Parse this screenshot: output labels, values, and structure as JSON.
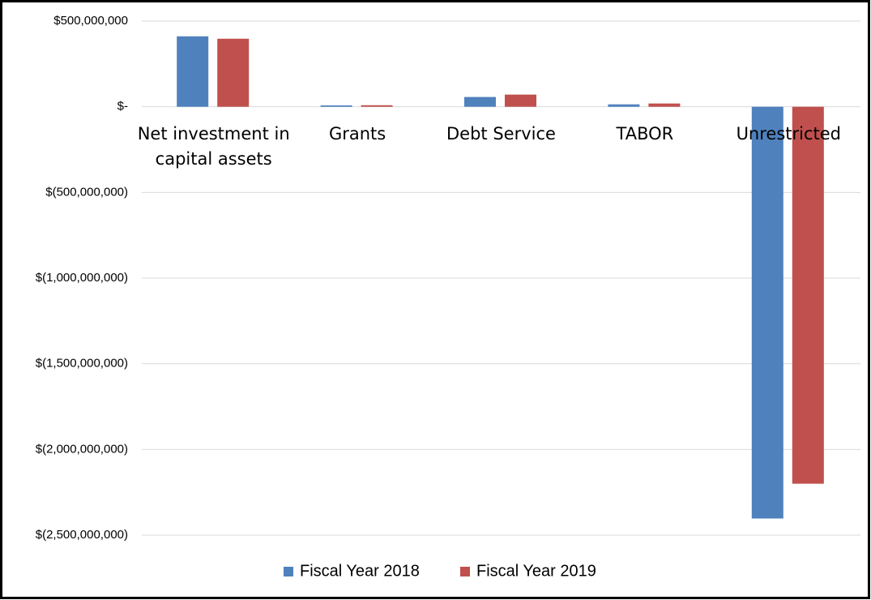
{
  "chart_data": {
    "type": "bar",
    "categories": [
      "Net investment in capital assets",
      "Grants",
      "Debt Service",
      "TABOR",
      "Unrestricted"
    ],
    "series": [
      {
        "name": "Fiscal Year 2018",
        "color": "#4f81bd",
        "values": [
          411000000,
          8000000,
          57000000,
          14000000,
          -2403000000
        ]
      },
      {
        "name": "Fiscal Year 2019",
        "color": "#c0504d",
        "values": [
          397000000,
          9000000,
          71000000,
          19000000,
          -2200000000
        ]
      }
    ],
    "ylim": [
      -2500000000,
      500000000
    ],
    "yticks": [
      {
        "value": 500000000,
        "label": "$500,000,000"
      },
      {
        "value": 0,
        "label": "$-"
      },
      {
        "value": -500000000,
        "label": "$(500,000,000)"
      },
      {
        "value": -1000000000,
        "label": "$(1,000,000,000)"
      },
      {
        "value": -1500000000,
        "label": "$(1,500,000,000)"
      },
      {
        "value": -2000000000,
        "label": "$(2,000,000,000)"
      },
      {
        "value": -2500000000,
        "label": "$(2,500,000,000)"
      }
    ],
    "grid": true,
    "legend": "bottom"
  }
}
